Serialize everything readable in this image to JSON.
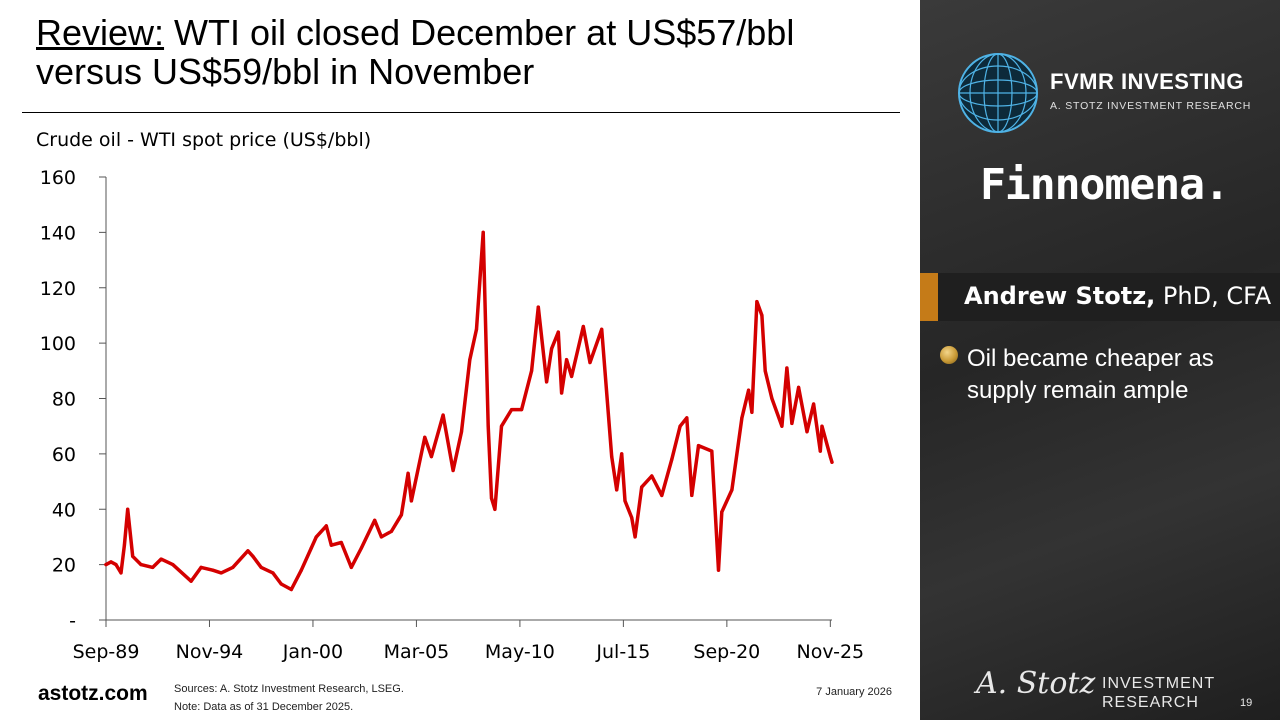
{
  "slide": {
    "title_prefix": "Review:",
    "title_rest": " WTI oil closed December at US$57/bbl versus US$59/bbl in November",
    "brand": "astotz.com",
    "sources": "Sources: A. Stotz Investment Research, LSEG.",
    "note": "Note: Data as of 31 December 2025.",
    "date": "7 January 2026",
    "page_number": "19"
  },
  "panel": {
    "fvmr_name": "FVMR INVESTING",
    "fvmr_subtitle": "A. STOTZ INVESTMENT RESEARCH",
    "finnomena": "Finnomena.",
    "author_name": "Andrew Stotz,",
    "author_credentials": " PhD, CFA",
    "bullet": "Oil became cheaper as supply remain ample",
    "stotz_signature": "A. Stotz",
    "stotz_line1": "INVESTMENT",
    "stotz_line2": "RESEARCH",
    "accent_color": "#c57b18",
    "bullet_icon": "gold-sphere-bullet-icon"
  },
  "chart_data": {
    "type": "line",
    "title": "Crude oil - WTI spot price (US$/bbl)",
    "ylim": [
      0,
      160
    ],
    "yticks": [
      0,
      20,
      40,
      60,
      80,
      100,
      120,
      140,
      160
    ],
    "ytick_labels": [
      "-",
      "20",
      "40",
      "60",
      "80",
      "100",
      "120",
      "140",
      "160"
    ],
    "xlim": [
      "Sep-89",
      "Dec-25"
    ],
    "xtick_labels": [
      "Sep-89",
      "Nov-94",
      "Jan-00",
      "Mar-05",
      "May-10",
      "Jul-15",
      "Sep-20",
      "Nov-25"
    ],
    "line_color": "#d40000",
    "grid": false,
    "series": [
      {
        "points": [
          [
            "Sep-89",
            20
          ],
          [
            "Dec-89",
            21
          ],
          [
            "Mar-90",
            20
          ],
          [
            "Jun-90",
            17
          ],
          [
            "Aug-90",
            27
          ],
          [
            "Oct-90",
            40
          ],
          [
            "Jan-91",
            23
          ],
          [
            "Jun-91",
            20
          ],
          [
            "Jan-92",
            19
          ],
          [
            "Jun-92",
            22
          ],
          [
            "Jan-93",
            20
          ],
          [
            "Dec-93",
            14
          ],
          [
            "Jun-94",
            19
          ],
          [
            "Jan-95",
            18
          ],
          [
            "Jun-95",
            17
          ],
          [
            "Jan-96",
            19
          ],
          [
            "Oct-96",
            25
          ],
          [
            "Jan-97",
            23
          ],
          [
            "Jun-97",
            19
          ],
          [
            "Jan-98",
            17
          ],
          [
            "Jun-98",
            13
          ],
          [
            "Dec-98",
            11
          ],
          [
            "Jun-99",
            18
          ],
          [
            "Dec-99",
            26
          ],
          [
            "Mar-00",
            30
          ],
          [
            "Sep-00",
            34
          ],
          [
            "Dec-00",
            27
          ],
          [
            "Jun-01",
            28
          ],
          [
            "Dec-01",
            19
          ],
          [
            "Jun-02",
            26
          ],
          [
            "Feb-03",
            36
          ],
          [
            "Jun-03",
            30
          ],
          [
            "Dec-03",
            32
          ],
          [
            "Jun-04",
            38
          ],
          [
            "Oct-04",
            53
          ],
          [
            "Dec-04",
            43
          ],
          [
            "Aug-05",
            66
          ],
          [
            "Dec-05",
            59
          ],
          [
            "Jul-06",
            74
          ],
          [
            "Jan-07",
            54
          ],
          [
            "Jun-07",
            68
          ],
          [
            "Nov-07",
            94
          ],
          [
            "Mar-08",
            105
          ],
          [
            "Jul-08",
            140
          ],
          [
            "Oct-08",
            70
          ],
          [
            "Dec-08",
            44
          ],
          [
            "Feb-09",
            40
          ],
          [
            "Jun-09",
            70
          ],
          [
            "Dec-09",
            76
          ],
          [
            "Jun-10",
            76
          ],
          [
            "Dec-10",
            90
          ],
          [
            "Apr-11",
            113
          ],
          [
            "Sep-11",
            86
          ],
          [
            "Dec-11",
            98
          ],
          [
            "Apr-12",
            104
          ],
          [
            "Jun-12",
            82
          ],
          [
            "Sep-12",
            94
          ],
          [
            "Dec-12",
            88
          ],
          [
            "Jul-13",
            106
          ],
          [
            "Nov-13",
            93
          ],
          [
            "Jun-14",
            105
          ],
          [
            "Dec-14",
            59
          ],
          [
            "Mar-15",
            47
          ],
          [
            "Jun-15",
            60
          ],
          [
            "Aug-15",
            43
          ],
          [
            "Dec-15",
            37
          ],
          [
            "Feb-16",
            30
          ],
          [
            "Jun-16",
            48
          ],
          [
            "Dec-16",
            52
          ],
          [
            "Jun-17",
            45
          ],
          [
            "Dec-17",
            58
          ],
          [
            "May-18",
            70
          ],
          [
            "Sep-18",
            73
          ],
          [
            "Dec-18",
            45
          ],
          [
            "Apr-19",
            63
          ],
          [
            "Dec-19",
            61
          ],
          [
            "Apr-20",
            18
          ],
          [
            "Jun-20",
            39
          ],
          [
            "Dec-20",
            47
          ],
          [
            "Jun-21",
            73
          ],
          [
            "Oct-21",
            83
          ],
          [
            "Dec-21",
            75
          ],
          [
            "Mar-22",
            115
          ],
          [
            "Jun-22",
            110
          ],
          [
            "Aug-22",
            90
          ],
          [
            "Dec-22",
            80
          ],
          [
            "Jun-23",
            70
          ],
          [
            "Sep-23",
            91
          ],
          [
            "Dec-23",
            71
          ],
          [
            "Apr-24",
            84
          ],
          [
            "Sep-24",
            68
          ],
          [
            "Jan-25",
            78
          ],
          [
            "May-25",
            61
          ],
          [
            "Jun-25",
            70
          ],
          [
            "Nov-25",
            59
          ],
          [
            "Dec-25",
            57
          ]
        ]
      }
    ]
  }
}
